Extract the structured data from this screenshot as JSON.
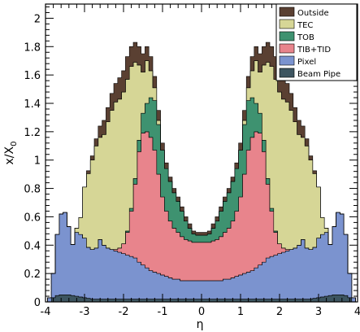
{
  "chart_data": {
    "type": "area",
    "stacked": true,
    "xlabel": "η",
    "ylabel_main": "x/X",
    "ylabel_sub": "0",
    "xlim": [
      -4,
      4
    ],
    "ylim": [
      0,
      2.1
    ],
    "grid": false,
    "legend_position": "top-right",
    "xticks": [
      "-4",
      "-3",
      "-2",
      "-1",
      "0",
      "1",
      "2",
      "3",
      "4"
    ],
    "yticks": [
      "0",
      "0.2",
      "0.4",
      "0.6",
      "0.8",
      "1",
      "1.2",
      "1.4",
      "1.6",
      "1.8",
      "2"
    ],
    "x": [
      -4.0,
      -3.9,
      -3.8,
      -3.7,
      -3.6,
      -3.5,
      -3.4,
      -3.3,
      -3.2,
      -3.1,
      -3.0,
      -2.9,
      -2.8,
      -2.7,
      -2.6,
      -2.5,
      -2.4,
      -2.3,
      -2.2,
      -2.1,
      -2.0,
      -1.9,
      -1.8,
      -1.7,
      -1.6,
      -1.5,
      -1.4,
      -1.3,
      -1.2,
      -1.1,
      -1.0,
      -0.9,
      -0.8,
      -0.7,
      -0.6,
      -0.5,
      -0.4,
      -0.3,
      -0.2,
      -0.1,
      0.0,
      0.1,
      0.2,
      0.3,
      0.4,
      0.5,
      0.6,
      0.7,
      0.8,
      0.9,
      1.0,
      1.1,
      1.2,
      1.3,
      1.4,
      1.5,
      1.6,
      1.7,
      1.8,
      1.9,
      2.0,
      2.1,
      2.2,
      2.3,
      2.4,
      2.5,
      2.6,
      2.7,
      2.8,
      2.9,
      3.0,
      3.1,
      3.2,
      3.3,
      3.4,
      3.5,
      3.6,
      3.7,
      3.8,
      3.9,
      4.0
    ],
    "series": [
      {
        "name": "Beam Pipe",
        "color": "#3d5560",
        "values": [
          0.0,
          0.0,
          0.03,
          0.045,
          0.05,
          0.05,
          0.05,
          0.045,
          0.04,
          0.035,
          0.03,
          0.025,
          0.02,
          0.02,
          0.02,
          0.02,
          0.02,
          0.02,
          0.02,
          0.02,
          0.02,
          0.02,
          0.02,
          0.02,
          0.02,
          0.02,
          0.02,
          0.02,
          0.02,
          0.02,
          0.02,
          0.02,
          0.02,
          0.02,
          0.02,
          0.02,
          0.02,
          0.02,
          0.02,
          0.02,
          0.02,
          0.02,
          0.02,
          0.02,
          0.02,
          0.02,
          0.02,
          0.02,
          0.02,
          0.02,
          0.02,
          0.02,
          0.02,
          0.02,
          0.02,
          0.02,
          0.02,
          0.02,
          0.02,
          0.02,
          0.02,
          0.02,
          0.02,
          0.02,
          0.02,
          0.02,
          0.02,
          0.02,
          0.02,
          0.025,
          0.03,
          0.035,
          0.04,
          0.045,
          0.05,
          0.05,
          0.05,
          0.045,
          0.03,
          0.0,
          0.0
        ]
      },
      {
        "name": "Pixel",
        "color": "#7b93cf",
        "values": [
          0.0,
          0.03,
          0.17,
          0.43,
          0.57,
          0.58,
          0.48,
          0.36,
          0.45,
          0.44,
          0.42,
          0.36,
          0.35,
          0.36,
          0.42,
          0.38,
          0.36,
          0.35,
          0.34,
          0.33,
          0.32,
          0.31,
          0.3,
          0.29,
          0.26,
          0.24,
          0.22,
          0.2,
          0.19,
          0.18,
          0.17,
          0.16,
          0.15,
          0.14,
          0.14,
          0.13,
          0.13,
          0.13,
          0.13,
          0.13,
          0.13,
          0.13,
          0.13,
          0.13,
          0.13,
          0.13,
          0.14,
          0.14,
          0.15,
          0.16,
          0.17,
          0.18,
          0.19,
          0.2,
          0.22,
          0.24,
          0.26,
          0.29,
          0.3,
          0.31,
          0.32,
          0.33,
          0.34,
          0.35,
          0.36,
          0.38,
          0.42,
          0.36,
          0.35,
          0.36,
          0.42,
          0.44,
          0.45,
          0.36,
          0.48,
          0.58,
          0.57,
          0.43,
          0.17,
          0.03,
          0.0
        ]
      },
      {
        "name": "TIB+TID",
        "color": "#e8848c",
        "values": [
          0.0,
          0.0,
          0.0,
          0.0,
          0.0,
          0.0,
          0.0,
          0.0,
          0.0,
          0.0,
          0.0,
          0.0,
          0.0,
          0.0,
          0.0,
          0.0,
          0.0,
          0.0,
          0.01,
          0.03,
          0.07,
          0.16,
          0.32,
          0.52,
          0.78,
          0.93,
          0.96,
          0.94,
          0.86,
          0.7,
          0.55,
          0.46,
          0.4,
          0.36,
          0.33,
          0.31,
          0.29,
          0.28,
          0.27,
          0.27,
          0.27,
          0.27,
          0.27,
          0.28,
          0.29,
          0.31,
          0.33,
          0.36,
          0.4,
          0.46,
          0.55,
          0.7,
          0.86,
          0.94,
          0.96,
          0.93,
          0.78,
          0.52,
          0.32,
          0.16,
          0.07,
          0.03,
          0.01,
          0.0,
          0.0,
          0.0,
          0.0,
          0.0,
          0.0,
          0.0,
          0.0,
          0.0,
          0.0,
          0.0,
          0.0,
          0.0,
          0.0,
          0.0,
          0.0,
          0.0,
          0.0
        ]
      },
      {
        "name": "TOB",
        "color": "#3e9270",
        "values": [
          0.0,
          0.0,
          0.0,
          0.0,
          0.0,
          0.0,
          0.0,
          0.0,
          0.0,
          0.0,
          0.0,
          0.0,
          0.0,
          0.0,
          0.0,
          0.0,
          0.0,
          0.0,
          0.0,
          0.0,
          0.0,
          0.01,
          0.02,
          0.04,
          0.08,
          0.14,
          0.2,
          0.28,
          0.35,
          0.35,
          0.33,
          0.3,
          0.28,
          0.25,
          0.22,
          0.18,
          0.13,
          0.09,
          0.06,
          0.05,
          0.05,
          0.05,
          0.06,
          0.09,
          0.13,
          0.18,
          0.22,
          0.25,
          0.28,
          0.3,
          0.33,
          0.35,
          0.35,
          0.28,
          0.2,
          0.14,
          0.08,
          0.04,
          0.02,
          0.01,
          0.0,
          0.0,
          0.0,
          0.0,
          0.0,
          0.0,
          0.0,
          0.0,
          0.0,
          0.0,
          0.0,
          0.0,
          0.0,
          0.0,
          0.0,
          0.0,
          0.0,
          0.0,
          0.0,
          0.0,
          0.0
        ]
      },
      {
        "name": "TEC",
        "color": "#d6d696",
        "values": [
          0.0,
          0.0,
          0.0,
          0.0,
          0.0,
          0.0,
          0.0,
          0.0,
          0.03,
          0.12,
          0.36,
          0.52,
          0.63,
          0.72,
          0.72,
          0.78,
          0.89,
          0.98,
          1.04,
          1.05,
          1.07,
          1.07,
          1.0,
          0.82,
          0.53,
          0.29,
          0.3,
          0.19,
          0.09,
          0.03,
          0.0,
          0.0,
          0.0,
          0.0,
          0.0,
          0.0,
          0.0,
          0.0,
          0.0,
          0.0,
          0.0,
          0.0,
          0.0,
          0.0,
          0.0,
          0.0,
          0.0,
          0.0,
          0.0,
          0.0,
          0.0,
          0.03,
          0.09,
          0.19,
          0.3,
          0.29,
          0.53,
          0.82,
          1.0,
          1.07,
          1.07,
          1.05,
          1.04,
          0.98,
          0.89,
          0.78,
          0.72,
          0.72,
          0.63,
          0.52,
          0.36,
          0.12,
          0.03,
          0.0,
          0.0,
          0.0,
          0.0,
          0.0,
          0.0,
          0.0,
          0.0
        ]
      },
      {
        "name": "Outside",
        "color": "#5a4032",
        "values": [
          0.0,
          0.0,
          0.0,
          0.0,
          0.0,
          0.0,
          0.0,
          0.0,
          0.0,
          0.0,
          0.0,
          0.02,
          0.03,
          0.05,
          0.08,
          0.1,
          0.1,
          0.12,
          0.13,
          0.15,
          0.15,
          0.16,
          0.14,
          0.14,
          0.13,
          0.13,
          0.1,
          0.1,
          0.08,
          0.07,
          0.05,
          0.04,
          0.03,
          0.03,
          0.03,
          0.03,
          0.03,
          0.03,
          0.02,
          0.02,
          0.02,
          0.02,
          0.02,
          0.03,
          0.03,
          0.03,
          0.03,
          0.03,
          0.03,
          0.04,
          0.05,
          0.07,
          0.08,
          0.1,
          0.1,
          0.13,
          0.13,
          0.14,
          0.14,
          0.16,
          0.15,
          0.15,
          0.13,
          0.12,
          0.1,
          0.1,
          0.08,
          0.05,
          0.03,
          0.02,
          0.0,
          0.0,
          0.0,
          0.0,
          0.0,
          0.0,
          0.0,
          0.0,
          0.0,
          0.0,
          0.0
        ]
      }
    ],
    "legend": [
      {
        "label": "Outside",
        "color": "#5a4032"
      },
      {
        "label": "TEC",
        "color": "#d6d696"
      },
      {
        "label": "TOB",
        "color": "#3e9270"
      },
      {
        "label": "TIB+TID",
        "color": "#e8848c"
      },
      {
        "label": "Pixel",
        "color": "#7b93cf"
      },
      {
        "label": "Beam Pipe",
        "color": "#3d5560"
      }
    ]
  }
}
